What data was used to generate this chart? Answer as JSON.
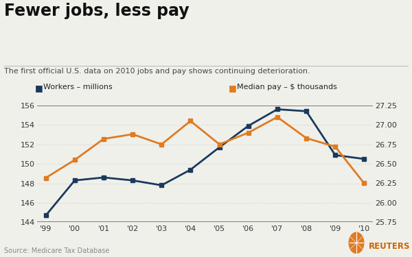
{
  "title": "Fewer jobs, less pay",
  "subtitle": "The first official U.S. data on 2010 jobs and pay shows continuing deterioration.",
  "source": "Source: Medicare Tax Database",
  "years": [
    "'99",
    "'00",
    "'01",
    "'02",
    "'03",
    "'04",
    "'05",
    "'06",
    "'07",
    "'08",
    "'09",
    "'10"
  ],
  "workers": [
    144.7,
    148.3,
    148.6,
    148.3,
    147.8,
    149.4,
    151.7,
    153.9,
    155.6,
    155.4,
    150.9,
    150.5
  ],
  "median_pay": [
    26.32,
    26.55,
    26.82,
    26.88,
    26.75,
    27.05,
    26.75,
    26.9,
    27.1,
    26.83,
    26.72,
    26.25
  ],
  "workers_color": "#1a3a5c",
  "pay_color": "#e07b20",
  "bg_color": "#f0f0eb",
  "title_color": "#111111",
  "subtitle_color": "#444444",
  "source_color": "#888888",
  "workers_ylim": [
    144,
    156
  ],
  "pay_ylim": [
    25.75,
    27.25
  ],
  "workers_yticks": [
    144,
    146,
    148,
    150,
    152,
    154,
    156
  ],
  "pay_yticks": [
    25.75,
    26.0,
    26.25,
    26.5,
    26.75,
    27.0,
    27.25
  ],
  "grid_color": "#cccccc",
  "line_width": 2.0,
  "marker_size": 5
}
